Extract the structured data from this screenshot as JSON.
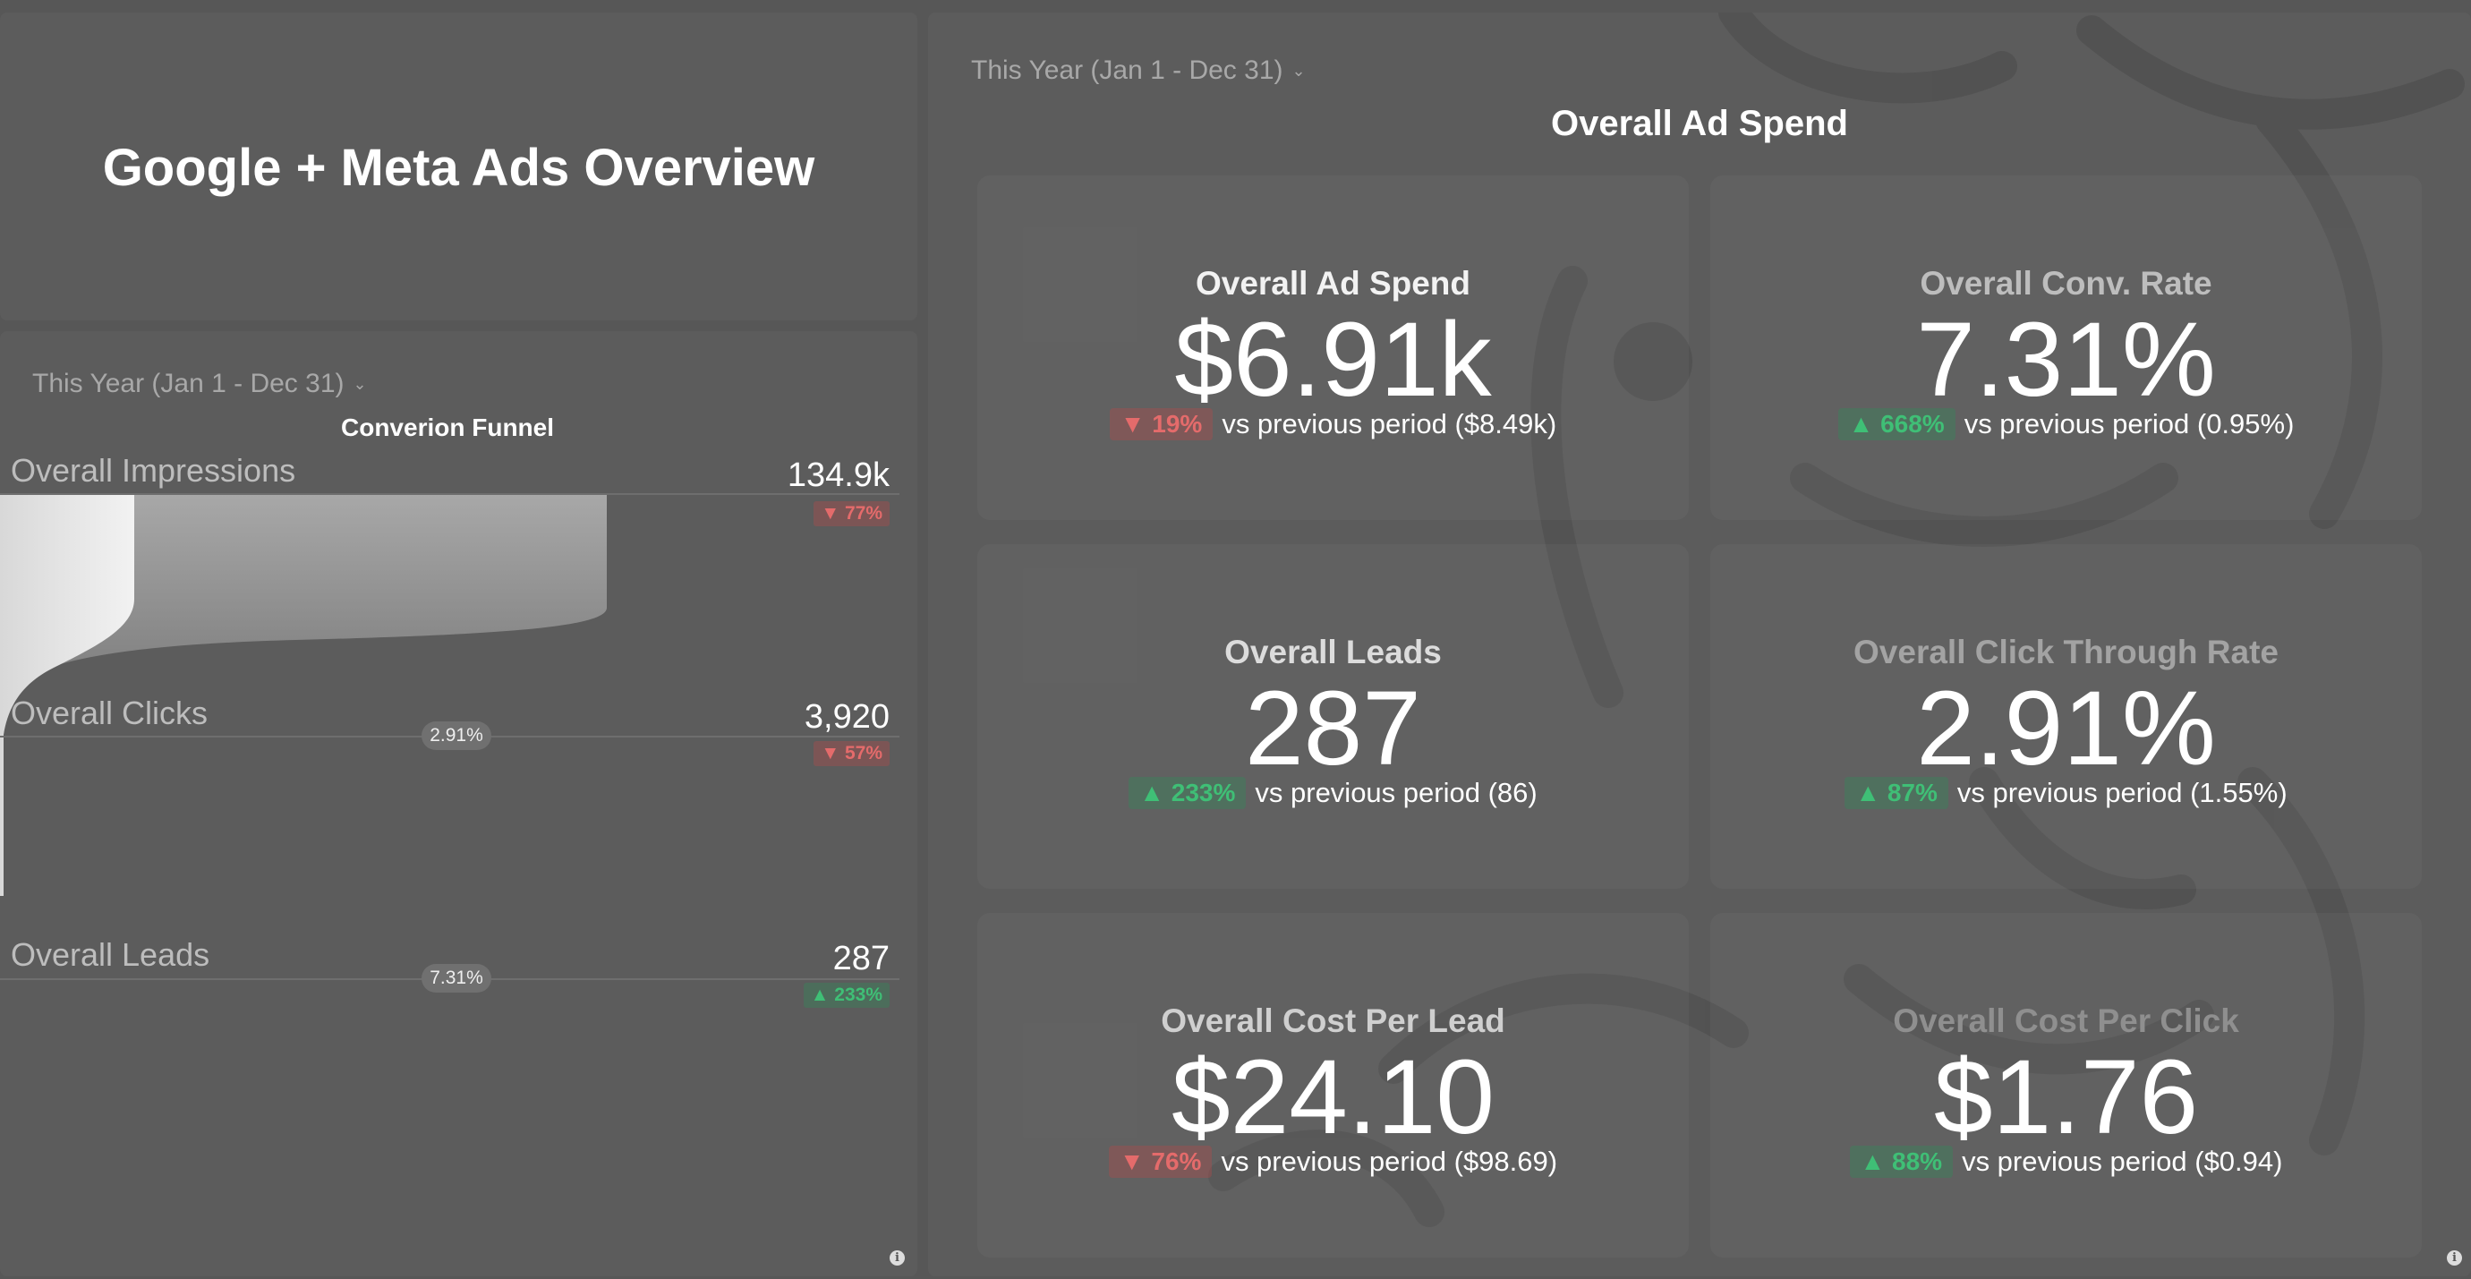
{
  "dashboard": {
    "title": "Google + Meta Ads Overview"
  },
  "funnel_widget": {
    "date_filter": "This Year (Jan 1 - Dec 31)",
    "title": "Converion Funnel",
    "stages": [
      {
        "label": "Overall Impressions",
        "value": "134.9k",
        "change": "▼ 77%",
        "direction": "down"
      },
      {
        "label": "Overall Clicks",
        "value": "3,920",
        "change": "▼ 57%",
        "direction": "down",
        "conversion": "2.91%"
      },
      {
        "label": "Overall Leads",
        "value": "287",
        "change": "▲ 233%",
        "direction": "up",
        "conversion": "7.31%"
      }
    ],
    "info_icon": "i"
  },
  "kpi_widget": {
    "date_filter": "This Year (Jan 1 - Dec 31)",
    "title": "Overall Ad Spend",
    "cards": [
      {
        "label": "Overall Ad Spend",
        "value": "$6.91k",
        "change": "▼ 19%",
        "direction": "down",
        "compare": "vs previous period ($8.49k)"
      },
      {
        "label": "Overall Conv. Rate",
        "value": "7.31%",
        "change": "▲ 668%",
        "direction": "up",
        "compare": "vs previous period (0.95%)"
      },
      {
        "label": "Overall Leads",
        "value": "287",
        "change": "▲ 233%",
        "direction": "up",
        "compare": "vs previous period (86)"
      },
      {
        "label": "Overall Click Through Rate",
        "value": "2.91%",
        "change": "▲ 87%",
        "direction": "up",
        "compare": "vs previous period (1.55%)"
      },
      {
        "label": "Overall Cost Per Lead",
        "value": "$24.10",
        "change": "▼ 76%",
        "direction": "down",
        "compare": "vs previous period ($98.69)"
      },
      {
        "label": "Overall Cost Per Click",
        "value": "$1.76",
        "change": "▲ 88%",
        "direction": "up",
        "compare": "vs previous period ($0.94)"
      }
    ],
    "info_icon": "i"
  },
  "colors": {
    "background": "#575757",
    "panel": "#5c5c5c",
    "negative": "#e46b6b",
    "positive": "#3fbf76"
  }
}
